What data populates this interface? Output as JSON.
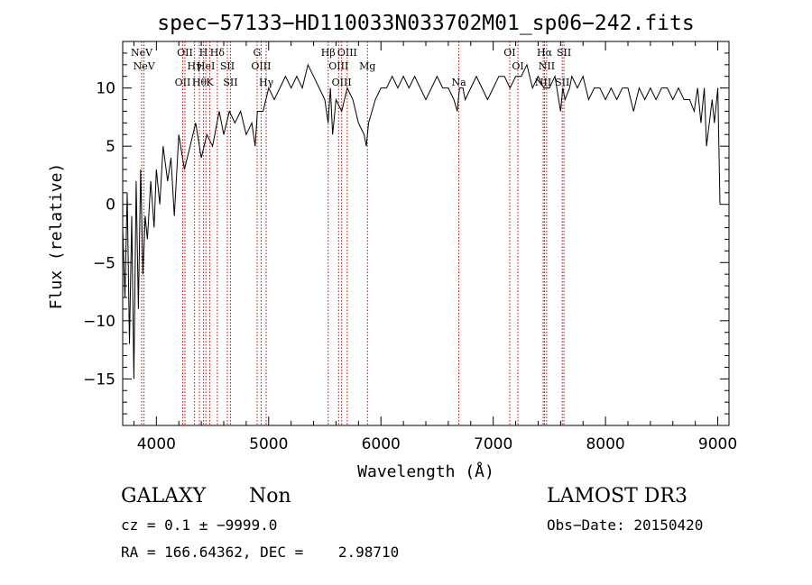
{
  "chart_data": {
    "type": "line",
    "title": "spec−57133−HD110033N033702M01_sp06−242.fits",
    "xlabel": "Wavelength (Å)",
    "ylabel": "Flux (relative)",
    "xlim": [
      3700,
      9100
    ],
    "ylim": [
      -19,
      14
    ],
    "xticks": [
      4000,
      5000,
      6000,
      7000,
      8000,
      9000
    ],
    "yticks": [
      -15,
      -10,
      -5,
      0,
      5,
      10
    ],
    "grid": false,
    "line_color": "#000000",
    "marker_color": "#cc0000",
    "series": [
      {
        "x": [
          3700,
          3720,
          3740,
          3760,
          3780,
          3800,
          3820,
          3840,
          3860,
          3880,
          3900,
          3920,
          3950,
          3980,
          4000,
          4030,
          4060,
          4100,
          4130,
          4160,
          4200,
          4250,
          4300,
          4350,
          4400,
          4450,
          4500,
          4540,
          4560,
          4600,
          4650,
          4700,
          4750,
          4800,
          4850,
          4880,
          4900,
          4950,
          5000,
          5050,
          5100,
          5150,
          5200,
          5250,
          5300,
          5350,
          5400,
          5450,
          5500,
          5530,
          5550,
          5570,
          5600,
          5650,
          5700,
          5750,
          5800,
          5850,
          5870,
          5890,
          5920,
          5950,
          6000,
          6050,
          6100,
          6150,
          6200,
          6250,
          6300,
          6350,
          6400,
          6450,
          6500,
          6550,
          6600,
          6650,
          6680,
          6700,
          6730,
          6750,
          6800,
          6850,
          6900,
          6950,
          7000,
          7050,
          7100,
          7150,
          7200,
          7250,
          7300,
          7350,
          7400,
          7450,
          7500,
          7550,
          7600,
          7620,
          7640,
          7680,
          7700,
          7750,
          7800,
          7850,
          7900,
          7950,
          8000,
          8050,
          8100,
          8150,
          8200,
          8250,
          8300,
          8350,
          8400,
          8450,
          8500,
          8550,
          8600,
          8650,
          8700,
          8750,
          8790,
          8820,
          8850,
          8880,
          8900,
          8950,
          8970,
          9000,
          9020
        ],
        "y": [
          -2,
          -8,
          1,
          -12,
          -1,
          -15,
          2,
          -9,
          3,
          -6,
          -1,
          -3,
          2,
          -2,
          3,
          0,
          5,
          2,
          4,
          -1,
          6,
          3,
          5,
          7,
          4,
          6,
          5,
          7,
          8,
          6,
          8,
          7,
          8,
          6,
          7,
          5,
          8,
          8,
          10,
          9,
          10,
          11,
          10,
          11,
          10,
          12,
          11,
          10,
          9,
          7,
          10,
          6,
          9,
          8,
          10,
          9,
          7,
          6,
          5,
          7,
          8,
          9,
          10,
          10,
          11,
          10,
          11,
          10,
          11,
          10,
          9,
          10,
          11,
          10,
          10,
          9,
          8,
          10,
          10,
          9,
          10,
          11,
          10,
          9,
          10,
          11,
          11,
          10,
          11,
          11,
          12,
          10,
          11,
          10,
          10,
          11,
          8,
          10,
          9,
          10,
          11,
          10,
          11,
          9,
          10,
          10,
          9,
          10,
          9,
          10,
          10,
          8,
          10,
          9,
          10,
          9,
          10,
          10,
          9,
          10,
          9,
          9,
          8,
          10,
          7,
          10,
          5,
          9,
          7,
          10,
          0
        ]
      }
    ],
    "lines": [
      {
        "x": 3869,
        "label": "NeV"
      },
      {
        "x": 3890,
        "label": "NeV"
      },
      {
        "x": 4234,
        "label": "OII"
      },
      {
        "x": 4254,
        "label": "OII"
      },
      {
        "x": 4340,
        "label": "Hγ"
      },
      {
        "x": 4383,
        "label": "Hθ"
      },
      {
        "x": 4420,
        "label": "H"
      },
      {
        "x": 4440,
        "label": "HeI"
      },
      {
        "x": 4475,
        "label": "K"
      },
      {
        "x": 4543,
        "label": "Hδ"
      },
      {
        "x": 4632,
        "label": "SII"
      },
      {
        "x": 4660,
        "label": "SII"
      },
      {
        "x": 4897,
        "label": "G"
      },
      {
        "x": 4933,
        "label": "OIII"
      },
      {
        "x": 4978,
        "label": "Hγ"
      },
      {
        "x": 5530,
        "label": "Hβ"
      },
      {
        "x": 5623,
        "label": "OIII"
      },
      {
        "x": 5650,
        "label": "OIII"
      },
      {
        "x": 5700,
        "label": "OIII"
      },
      {
        "x": 5880,
        "label": "Mg"
      },
      {
        "x": 6694,
        "label": "Na"
      },
      {
        "x": 7147,
        "label": "OI"
      },
      {
        "x": 7220,
        "label": "OI"
      },
      {
        "x": 7445,
        "label": "NII"
      },
      {
        "x": 7457,
        "label": "Hα"
      },
      {
        "x": 7476,
        "label": "NII"
      },
      {
        "x": 7615,
        "label": "SII"
      },
      {
        "x": 7630,
        "label": "SII"
      }
    ]
  },
  "info": {
    "class": "GALAXY",
    "subclass": "Non",
    "survey": "LAMOST DR3",
    "cz": "cz = 0.1 ± −9999.0",
    "obs_date": "Obs−Date: 20150420",
    "radec": "RA = 166.64362, DEC =    2.98710"
  }
}
